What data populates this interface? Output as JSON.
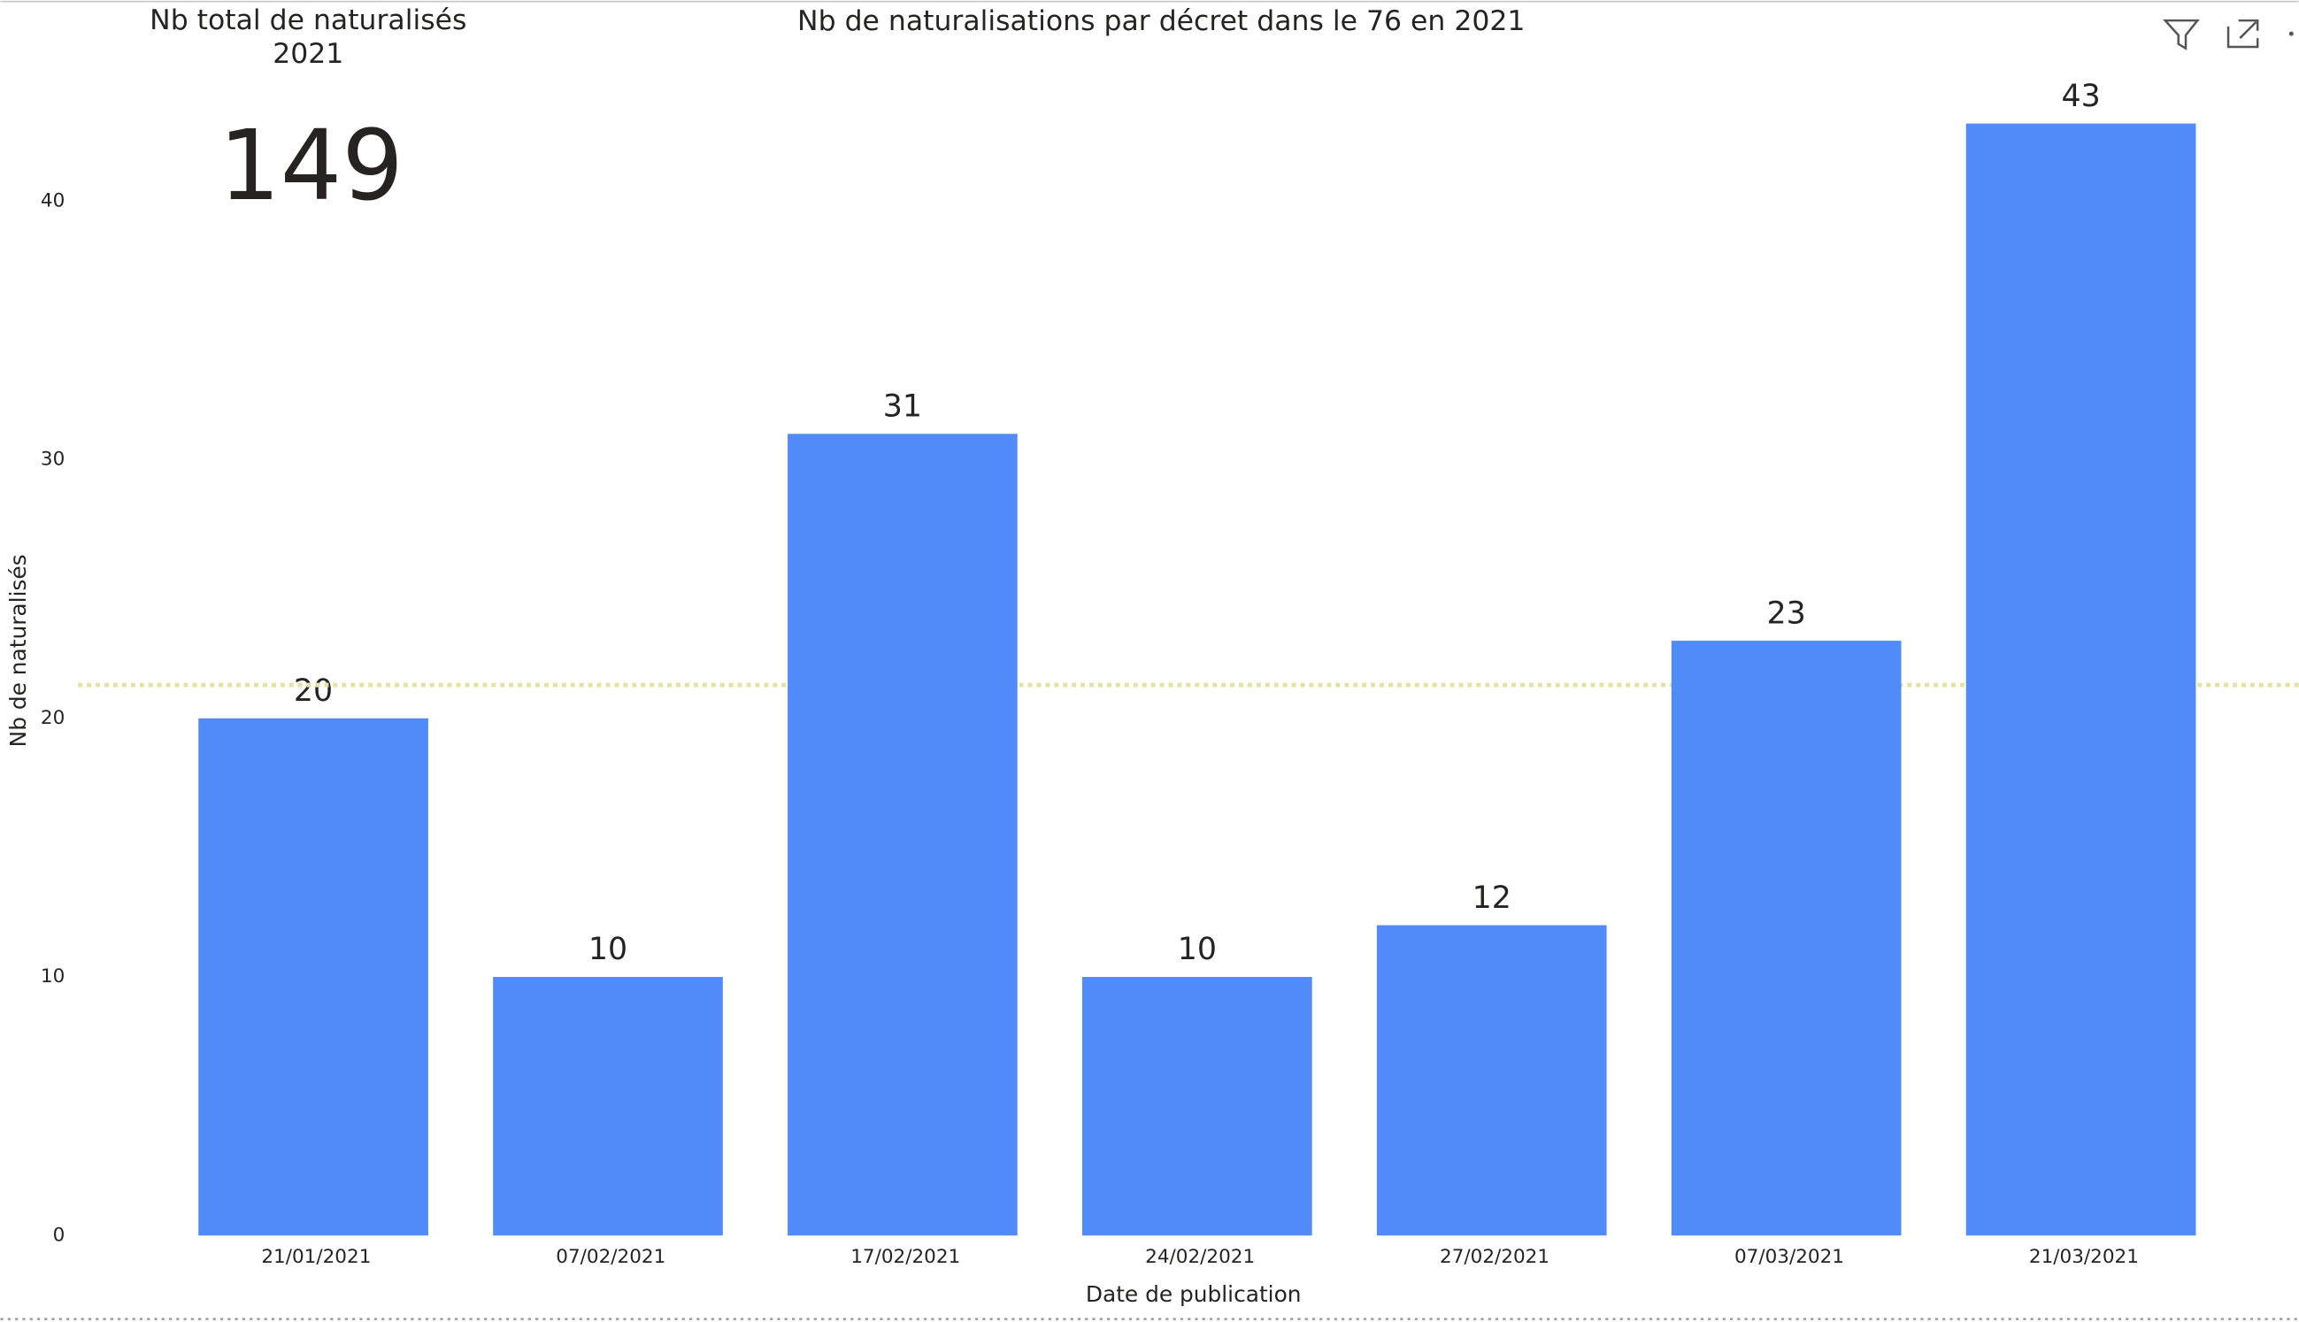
{
  "kpi": {
    "title": "Nb total de naturalisés 2021",
    "value": 149
  },
  "chart_data": {
    "type": "bar",
    "title": "Nb de naturalisations par décret dans le 76 en 2021",
    "x_label": "Date de publication",
    "y_label": "Nb de naturalisés",
    "categories": [
      "21/01/2021",
      "07/02/2021",
      "17/02/2021",
      "24/02/2021",
      "27/02/2021",
      "07/03/2021",
      "21/03/2021"
    ],
    "values": [
      20,
      10,
      31,
      10,
      12,
      23,
      43
    ],
    "color": "#518bfa",
    "ylim": [
      0,
      45
    ],
    "yticks": [
      0,
      10,
      20,
      30,
      40
    ],
    "grid": false,
    "average_line": 21.29,
    "average_color": "#e6e2a0"
  }
}
